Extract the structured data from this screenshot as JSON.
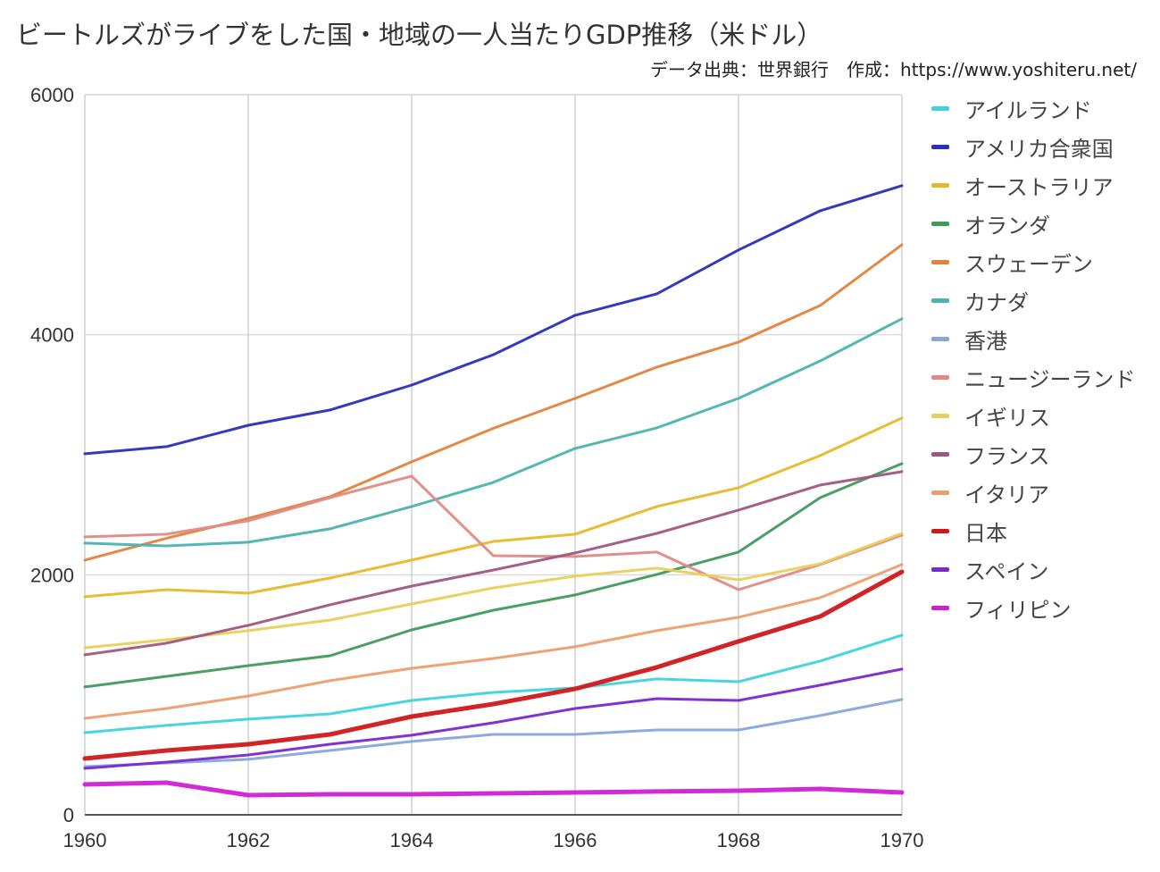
{
  "title": "ビートルズがライブをした国・地域の一人当たりGDP推移（米ドル）",
  "subtitle": "データ出典：世界銀行　作成：https://www.yoshiteru.net/",
  "chart_data": {
    "type": "line",
    "title": "ビートルズがライブをした国・地域の一人当たりGDP推移（米ドル）",
    "xlabel": "",
    "ylabel": "",
    "x": [
      1960,
      1961,
      1962,
      1963,
      1964,
      1965,
      1966,
      1967,
      1968,
      1969,
      1970
    ],
    "xticks": [
      "1960",
      "1962",
      "1964",
      "1966",
      "1968",
      "1970"
    ],
    "yticks": [
      "0",
      "2000",
      "4000",
      "6000"
    ],
    "xlim": [
      1960,
      1970
    ],
    "ylim": [
      0,
      6000
    ],
    "grid": true,
    "legend_position": "right",
    "series": [
      {
        "name": "アイルランド",
        "color": "#3fd3dd",
        "width": 3,
        "values": [
          685,
          745,
          797,
          841,
          953,
          1020,
          1057,
          1132,
          1109,
          1281,
          1497
        ]
      },
      {
        "name": "アメリカ合衆国",
        "color": "#2a2fb8",
        "width": 3,
        "values": [
          3008,
          3068,
          3246,
          3373,
          3581,
          3834,
          4162,
          4341,
          4706,
          5033,
          5242
        ]
      },
      {
        "name": "オーストラリア",
        "color": "#e6b92a",
        "width": 3,
        "values": [
          1817,
          1876,
          1847,
          1973,
          2122,
          2278,
          2338,
          2569,
          2725,
          2993,
          3306
        ]
      },
      {
        "name": "オランダ",
        "color": "#3f9a5c",
        "width": 3,
        "values": [
          1065,
          1154,
          1243,
          1325,
          1541,
          1705,
          1832,
          2003,
          2189,
          2643,
          2926
        ]
      },
      {
        "name": "スウェーデン",
        "color": "#e3823c",
        "width": 3,
        "values": [
          2122,
          2305,
          2470,
          2650,
          2941,
          3220,
          3470,
          3730,
          3939,
          4244,
          4750
        ]
      },
      {
        "name": "カナダ",
        "color": "#4bb3b0",
        "width": 3,
        "values": [
          2264,
          2241,
          2271,
          2383,
          2569,
          2770,
          3053,
          3224,
          3470,
          3782,
          4133
        ]
      },
      {
        "name": "香港",
        "color": "#86a6dd",
        "width": 3,
        "values": [
          402,
          432,
          462,
          536,
          611,
          670,
          670,
          707,
          707,
          827,
          961
        ]
      },
      {
        "name": "ニュージーランド",
        "color": "#e08a86",
        "width": 3,
        "values": [
          2316,
          2338,
          2450,
          2643,
          2822,
          2159,
          2152,
          2189,
          1876,
          2085,
          2330
        ]
      },
      {
        "name": "イギリス",
        "color": "#e8cf5a",
        "width": 3,
        "values": [
          1392,
          1459,
          1534,
          1623,
          1757,
          1891,
          1988,
          2055,
          1958,
          2092,
          2345
        ]
      },
      {
        "name": "フランス",
        "color": "#a0577e",
        "width": 3,
        "values": [
          1333,
          1430,
          1579,
          1750,
          1906,
          2040,
          2182,
          2345,
          2539,
          2748,
          2859
        ]
      },
      {
        "name": "イタリア",
        "color": "#ec9e6a",
        "width": 3,
        "values": [
          804,
          886,
          990,
          1117,
          1221,
          1303,
          1400,
          1534,
          1646,
          1809,
          2085
        ]
      },
      {
        "name": "日本",
        "color": "#d01818",
        "width": 5,
        "values": [
          469,
          536,
          588,
          670,
          819,
          923,
          1050,
          1229,
          1445,
          1653,
          2025
        ]
      },
      {
        "name": "スペイン",
        "color": "#7a28d0",
        "width": 3,
        "values": [
          387,
          439,
          499,
          588,
          663,
          767,
          886,
          968,
          953,
          1080,
          1214
        ]
      },
      {
        "name": "フィリピン",
        "color": "#cf1fd4",
        "width": 5,
        "values": [
          253,
          268,
          164,
          171,
          171,
          179,
          186,
          194,
          201,
          216,
          186
        ]
      }
    ]
  }
}
